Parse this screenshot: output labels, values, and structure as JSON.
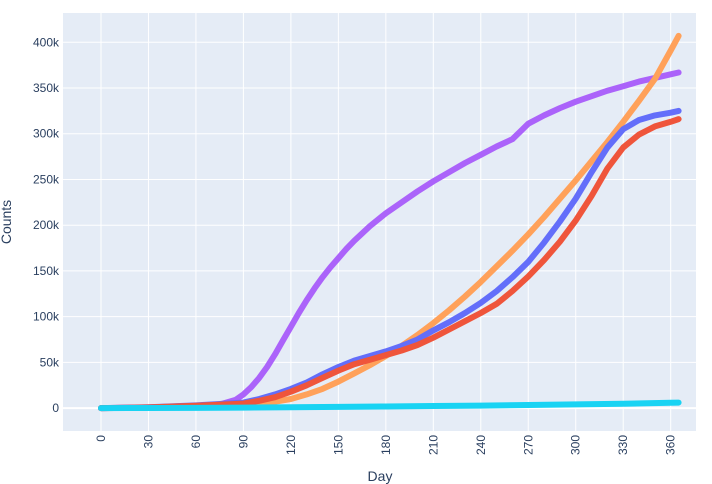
{
  "chart_data": {
    "type": "line",
    "title": "",
    "xlabel": "Day",
    "ylabel": "Counts",
    "xlim": [
      -24,
      376
    ],
    "ylim": [
      -25000,
      432000
    ],
    "xticks": [
      0,
      30,
      60,
      90,
      120,
      150,
      180,
      210,
      240,
      270,
      300,
      330,
      360
    ],
    "xtick_labels": [
      "0",
      "30",
      "60",
      "90",
      "120",
      "150",
      "180",
      "210",
      "240",
      "270",
      "300",
      "330",
      "360"
    ],
    "yticks": [
      0,
      50000,
      100000,
      150000,
      200000,
      250000,
      300000,
      350000,
      400000
    ],
    "ytick_labels": [
      "0",
      "50k",
      "100k",
      "150k",
      "200k",
      "250k",
      "300k",
      "350k",
      "400k"
    ],
    "grid": true,
    "legend": "none",
    "colors": {
      "plot_bg": "#e5ecf6",
      "grid": "#ffffff",
      "text": "#2a3f5f"
    },
    "series": [
      {
        "color": "#ab63fa",
        "x": [
          0,
          30,
          60,
          75,
          85,
          90,
          95,
          100,
          105,
          110,
          115,
          120,
          125,
          130,
          135,
          140,
          145,
          150,
          155,
          160,
          165,
          170,
          175,
          180,
          190,
          200,
          210,
          220,
          230,
          240,
          250,
          260,
          270,
          280,
          290,
          300,
          310,
          320,
          330,
          340,
          350,
          360,
          365
        ],
        "y": [
          0,
          500,
          2000,
          4000,
          9000,
          15000,
          23000,
          33000,
          45000,
          59000,
          74000,
          89000,
          104000,
          118000,
          131000,
          143000,
          154000,
          164000,
          174000,
          183000,
          191000,
          199000,
          206000,
          213000,
          225000,
          237000,
          248000,
          258000,
          268000,
          277000,
          286000,
          294000,
          311000,
          320000,
          328000,
          335000,
          341000,
          347000,
          352000,
          357000,
          361000,
          365000,
          367000
        ]
      },
      {
        "color": "#ffa15a",
        "x": [
          0,
          60,
          90,
          100,
          110,
          120,
          130,
          140,
          150,
          160,
          170,
          180,
          190,
          200,
          210,
          220,
          230,
          240,
          250,
          260,
          270,
          280,
          290,
          300,
          310,
          320,
          330,
          340,
          350,
          360,
          365
        ],
        "y": [
          0,
          1000,
          3000,
          5000,
          7000,
          10000,
          15000,
          21000,
          29000,
          38000,
          47000,
          57000,
          68000,
          80000,
          93000,
          107000,
          122000,
          138000,
          155000,
          172000,
          190000,
          209000,
          229000,
          249000,
          270000,
          291000,
          313000,
          336000,
          360000,
          391000,
          407000
        ]
      },
      {
        "color": "#636efa",
        "x": [
          0,
          30,
          60,
          90,
          100,
          110,
          120,
          130,
          140,
          150,
          160,
          170,
          180,
          190,
          200,
          210,
          220,
          230,
          240,
          250,
          260,
          270,
          280,
          290,
          300,
          310,
          320,
          330,
          340,
          350,
          360,
          365
        ],
        "y": [
          0,
          1000,
          3000,
          6000,
          10000,
          15000,
          21000,
          28000,
          37000,
          45000,
          52000,
          57000,
          62000,
          68000,
          75000,
          85000,
          94000,
          104000,
          115000,
          128000,
          143000,
          160000,
          181000,
          204000,
          229000,
          258000,
          285000,
          305000,
          315000,
          320000,
          323000,
          325000
        ]
      },
      {
        "color": "#ef553b",
        "x": [
          0,
          30,
          60,
          90,
          100,
          110,
          120,
          130,
          140,
          150,
          160,
          170,
          180,
          190,
          200,
          210,
          220,
          230,
          240,
          250,
          260,
          270,
          280,
          290,
          300,
          310,
          320,
          330,
          340,
          350,
          360,
          365
        ],
        "y": [
          0,
          800,
          2500,
          5000,
          8000,
          12000,
          18000,
          25000,
          33000,
          41000,
          48000,
          53000,
          58000,
          63000,
          69000,
          77000,
          86000,
          95000,
          104000,
          114000,
          128000,
          144000,
          162000,
          182000,
          205000,
          232000,
          262000,
          285000,
          299000,
          308000,
          313000,
          316000
        ]
      },
      {
        "color": "#19d3f3",
        "x": [
          0,
          30,
          60,
          90,
          120,
          150,
          180,
          210,
          240,
          270,
          300,
          330,
          360,
          365
        ],
        "y": [
          0,
          100,
          300,
          600,
          1000,
          1400,
          1800,
          2300,
          2800,
          3400,
          4100,
          4900,
          5800,
          6000
        ]
      }
    ]
  }
}
